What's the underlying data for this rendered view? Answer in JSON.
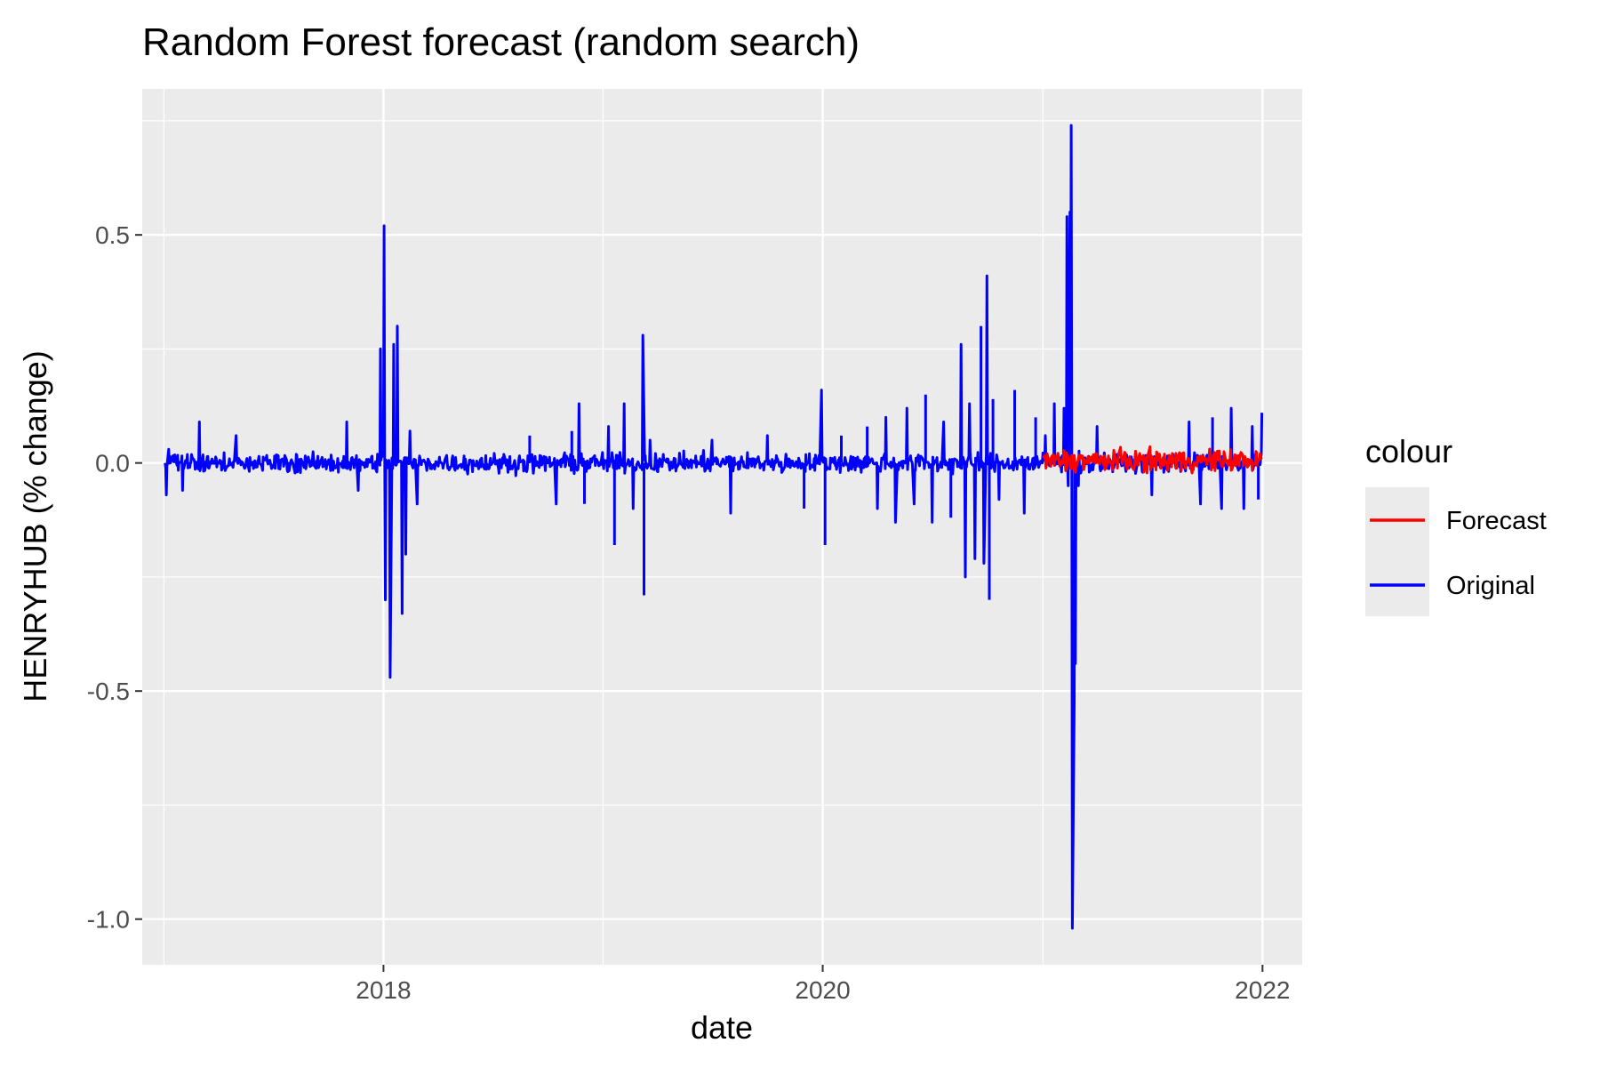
{
  "chart_data": {
    "type": "line",
    "title": "Random Forest forecast (random search)",
    "xlabel": "date",
    "ylabel": "HENRYHUB (% change)",
    "xlim": [
      "2016-11-26",
      "2022-03-08"
    ],
    "ylim": [
      -1.1,
      0.82
    ],
    "x_ticks": [
      {
        "date": "2018-01-01",
        "label": "2018"
      },
      {
        "date": "2020-01-01",
        "label": "2020"
      },
      {
        "date": "2022-01-01",
        "label": "2022"
      }
    ],
    "x_minor_ticks": [
      "2017-01-01",
      "2019-01-01",
      "2021-01-01"
    ],
    "y_ticks": [
      {
        "value": 0.5,
        "label": "0.5"
      },
      {
        "value": 0.0,
        "label": "0.0"
      },
      {
        "value": -0.5,
        "label": "-0.5"
      },
      {
        "value": -1.0,
        "label": "-1.0"
      }
    ],
    "y_minor_ticks": [
      0.75,
      0.25,
      -0.25,
      -0.75
    ],
    "grid": true,
    "legend": {
      "title": "colour",
      "position": "right"
    },
    "series": [
      {
        "name": "Forecast",
        "color": "#ff0000",
        "start": "2021-01-01",
        "end": "2021-12-31",
        "min": -0.04,
        "max": 0.07,
        "approximate": true
      },
      {
        "name": "Original",
        "color": "#0000ff",
        "start": "2017-01-03",
        "end": "2021-12-31",
        "approximate": true,
        "baseline_noise": 0.03,
        "points": [
          [
            "2017-01-03",
            0.0
          ],
          [
            "2017-01-05",
            -0.07
          ],
          [
            "2017-01-09",
            0.03
          ],
          [
            "2017-02-01",
            -0.06
          ],
          [
            "2017-03-01",
            0.09
          ],
          [
            "2017-05-01",
            0.06
          ],
          [
            "2017-11-01",
            0.09
          ],
          [
            "2017-11-20",
            -0.06
          ],
          [
            "2017-12-27",
            0.25
          ],
          [
            "2018-01-02",
            0.52
          ],
          [
            "2018-01-04",
            -0.3
          ],
          [
            "2018-01-12",
            -0.47
          ],
          [
            "2018-01-18",
            0.26
          ],
          [
            "2018-01-24",
            0.3
          ],
          [
            "2018-02-01",
            -0.33
          ],
          [
            "2018-02-07",
            -0.2
          ],
          [
            "2018-02-14",
            0.07
          ],
          [
            "2018-02-26",
            -0.09
          ],
          [
            "2018-09-01",
            0.06
          ],
          [
            "2018-10-15",
            -0.09
          ],
          [
            "2018-11-10",
            0.07
          ],
          [
            "2018-11-22",
            0.13
          ],
          [
            "2018-12-01",
            -0.09
          ],
          [
            "2019-01-10",
            0.08
          ],
          [
            "2019-01-20",
            -0.18
          ],
          [
            "2019-02-05",
            0.13
          ],
          [
            "2019-02-20",
            -0.1
          ],
          [
            "2019-03-08",
            0.28
          ],
          [
            "2019-03-10",
            -0.29
          ],
          [
            "2019-03-20",
            0.05
          ],
          [
            "2019-07-01",
            0.05
          ],
          [
            "2019-08-01",
            -0.11
          ],
          [
            "2019-10-01",
            0.06
          ],
          [
            "2019-12-01",
            -0.1
          ],
          [
            "2019-12-30",
            0.16
          ],
          [
            "2020-01-05",
            -0.18
          ],
          [
            "2020-02-01",
            0.06
          ],
          [
            "2020-03-15",
            0.08
          ],
          [
            "2020-04-01",
            -0.1
          ],
          [
            "2020-04-15",
            0.1
          ],
          [
            "2020-05-01",
            -0.13
          ],
          [
            "2020-05-20",
            0.12
          ],
          [
            "2020-06-01",
            -0.09
          ],
          [
            "2020-06-20",
            0.15
          ],
          [
            "2020-07-01",
            -0.13
          ],
          [
            "2020-07-20",
            0.09
          ],
          [
            "2020-08-01",
            -0.12
          ],
          [
            "2020-08-18",
            0.26
          ],
          [
            "2020-08-25",
            -0.25
          ],
          [
            "2020-09-01",
            0.13
          ],
          [
            "2020-09-10",
            -0.21
          ],
          [
            "2020-09-20",
            0.3
          ],
          [
            "2020-09-25",
            -0.22
          ],
          [
            "2020-09-30",
            0.41
          ],
          [
            "2020-10-04",
            -0.3
          ],
          [
            "2020-10-10",
            0.14
          ],
          [
            "2020-10-20",
            -0.08
          ],
          [
            "2020-11-15",
            0.16
          ],
          [
            "2020-12-01",
            -0.11
          ],
          [
            "2020-12-20",
            0.1
          ],
          [
            "2021-01-05",
            0.06
          ],
          [
            "2021-01-20",
            0.13
          ],
          [
            "2021-02-01",
            -0.02
          ],
          [
            "2021-02-05",
            0.12
          ],
          [
            "2021-02-10",
            0.54
          ],
          [
            "2021-02-12",
            -0.05
          ],
          [
            "2021-02-15",
            0.55
          ],
          [
            "2021-02-17",
            0.74
          ],
          [
            "2021-02-19",
            -1.02
          ],
          [
            "2021-02-22",
            -0.53
          ],
          [
            "2021-02-24",
            -0.44
          ],
          [
            "2021-03-01",
            -0.05
          ],
          [
            "2021-04-01",
            0.08
          ],
          [
            "2021-07-01",
            -0.07
          ],
          [
            "2021-09-01",
            0.09
          ],
          [
            "2021-09-20",
            -0.09
          ],
          [
            "2021-10-10",
            0.1
          ],
          [
            "2021-10-25",
            -0.1
          ],
          [
            "2021-11-10",
            0.12
          ],
          [
            "2021-12-01",
            -0.1
          ],
          [
            "2021-12-15",
            0.08
          ],
          [
            "2021-12-25",
            -0.08
          ],
          [
            "2021-12-31",
            0.11
          ]
        ]
      }
    ]
  }
}
